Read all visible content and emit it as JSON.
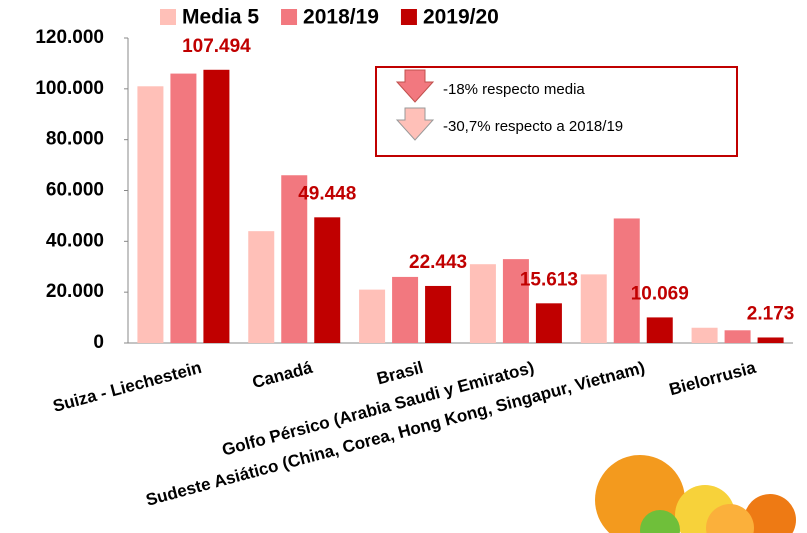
{
  "chart_data": {
    "type": "bar",
    "categories": [
      "Suiza - Liechestein",
      "Canadá",
      "Brasil",
      "Golfo Pérsico (Arabia Saudi y Emiratos)",
      "Sudeste Asiático (China, Corea, Hong Kong, Singapur, Vietnam)",
      "Bielorrusia"
    ],
    "series": [
      {
        "name": "Media 5",
        "color": "#ffc0b8",
        "values": [
          101000,
          44000,
          21000,
          31000,
          27000,
          6000
        ]
      },
      {
        "name": "2018/19",
        "color": "#f2787f",
        "values": [
          106000,
          66000,
          26000,
          33000,
          49000,
          5000
        ]
      },
      {
        "name": "2019/20",
        "color": "#c00000",
        "values": [
          107494,
          49448,
          22443,
          15613,
          10069,
          2173
        ],
        "value_labels": [
          "107.494",
          "49.448",
          "22.443",
          "15.613",
          "10.069",
          "2.173"
        ]
      }
    ],
    "ylim": [
      0,
      120000
    ],
    "yticks": [
      {
        "value": 0,
        "label": "0"
      },
      {
        "value": 20000,
        "label": "20.000"
      },
      {
        "value": 40000,
        "label": "40.000"
      },
      {
        "value": 60000,
        "label": "60.000"
      },
      {
        "value": 80000,
        "label": "80.000"
      },
      {
        "value": 100000,
        "label": "100.000"
      },
      {
        "value": 120000,
        "label": "120.000"
      }
    ],
    "annotations": [
      "-18% respecto media",
      "-30,7% respecto a 2018/19"
    ],
    "grid": false
  }
}
